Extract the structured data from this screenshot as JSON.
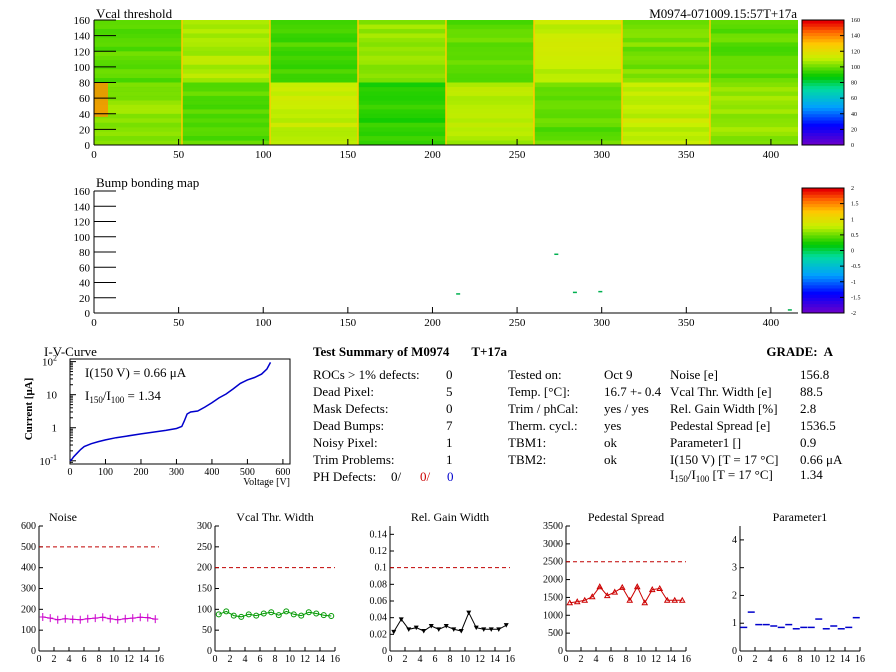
{
  "heatmap": {
    "title": "Vcal threshold",
    "module_label": "M0974-071009.15:57T+17a",
    "xlim": [
      0,
      416
    ],
    "ylim": [
      0,
      160
    ],
    "xticks": [
      0,
      50,
      100,
      150,
      200,
      250,
      300,
      350,
      400
    ],
    "yticks": [
      0,
      20,
      40,
      60,
      80,
      100,
      120,
      140,
      160
    ],
    "colorbar": {
      "min": 0,
      "max": 160,
      "ticks": [
        0,
        20,
        40,
        60,
        80,
        100,
        120,
        140,
        160
      ]
    }
  },
  "bump_map": {
    "title": "Bump bonding map",
    "xlim": [
      0,
      416
    ],
    "ylim": [
      0,
      160
    ],
    "xticks": [
      0,
      50,
      100,
      150,
      200,
      250,
      300,
      350,
      400
    ],
    "yticks": [
      0,
      20,
      40,
      60,
      80,
      100,
      120,
      140,
      160
    ],
    "colorbar": {
      "min": -2,
      "max": 2,
      "ticks": [
        -2,
        -1.5,
        -1,
        -0.5,
        0,
        0.5,
        1,
        1.5,
        2
      ]
    },
    "points": [
      [
        272,
        78
      ],
      [
        214,
        26
      ],
      [
        283,
        28
      ],
      [
        298,
        29
      ],
      [
        410,
        5
      ]
    ]
  },
  "iv_curve": {
    "title": "I-V-Curve",
    "ylabel": "Current [μA]",
    "xlabel": "Voltage [V]",
    "xticks": [
      0,
      100,
      200,
      300,
      400,
      500,
      600
    ],
    "xlim": [
      0,
      620
    ],
    "ylog_range": [
      0.08,
      120
    ],
    "yticks": [
      {
        "value": 0.1,
        "base": "10",
        "exp": "-1"
      },
      {
        "value": 1,
        "base": "1",
        "exp": ""
      },
      {
        "value": 10,
        "base": "10",
        "exp": ""
      },
      {
        "value": 100,
        "base": "10",
        "exp": "2"
      }
    ],
    "annotation_1": "I(150 V) = 0.66 μA",
    "annotation_2_prefix": "I",
    "annotation_2_sub1": "150",
    "annotation_2_sep": "/I",
    "annotation_2_sub2": "100",
    "annotation_2_suffix": " = 1.34",
    "color": "#0000cc",
    "points": [
      [
        0,
        0.1
      ],
      [
        5,
        0.11
      ],
      [
        10,
        0.13
      ],
      [
        20,
        0.17
      ],
      [
        30,
        0.22
      ],
      [
        40,
        0.27
      ],
      [
        60,
        0.33
      ],
      [
        80,
        0.38
      ],
      [
        100,
        0.43
      ],
      [
        130,
        0.5
      ],
      [
        160,
        0.56
      ],
      [
        200,
        0.65
      ],
      [
        240,
        0.75
      ],
      [
        270,
        0.83
      ],
      [
        300,
        0.95
      ],
      [
        315,
        1.1
      ],
      [
        322,
        1.6
      ],
      [
        330,
        2.6
      ],
      [
        340,
        3.0
      ],
      [
        360,
        3.2
      ],
      [
        380,
        4.2
      ],
      [
        400,
        5.7
      ],
      [
        420,
        8.0
      ],
      [
        440,
        10.5
      ],
      [
        460,
        15
      ],
      [
        480,
        22
      ],
      [
        500,
        28
      ],
      [
        520,
        33
      ],
      [
        540,
        42
      ],
      [
        555,
        60
      ],
      [
        565,
        95
      ]
    ]
  },
  "summary": {
    "heading": "Test Summary of M0974",
    "tag": "T+17a",
    "grade_label": "GRADE:",
    "grade_value": "A",
    "left_rows": [
      {
        "label": "ROCs > 1% defects:",
        "value": "0"
      },
      {
        "label": "Dead Pixel:",
        "value": "5"
      },
      {
        "label": "Mask Defects:",
        "value": "0"
      },
      {
        "label": "Dead Bumps:",
        "value": "7"
      },
      {
        "label": "Noisy Pixel:",
        "value": "1"
      },
      {
        "label": "Trim Problems:",
        "value": "1"
      }
    ],
    "ph_label": "PH Defects:",
    "ph_values": [
      "0/",
      "0/",
      "0"
    ],
    "ph_colors": [
      "#000000",
      "#cc0000",
      "#0000cc"
    ],
    "mid_rows": [
      {
        "label": "Tested on:",
        "value": "Oct 9"
      },
      {
        "label": "Temp. [°C]:",
        "value": "16.7 +- 0.4"
      },
      {
        "label": "Trim / phCal:",
        "value": "yes / yes"
      },
      {
        "label": "Therm. cycl.:",
        "value": "yes"
      },
      {
        "label": "TBM1:",
        "value": "ok"
      },
      {
        "label": "TBM2:",
        "value": "ok"
      }
    ],
    "right_rows": [
      {
        "label": "Noise [e]",
        "value": "156.8"
      },
      {
        "label": "Vcal Thr. Width [e]",
        "value": "88.5"
      },
      {
        "label": "Rel. Gain Width [%]",
        "value": "2.8"
      },
      {
        "label": "Pedestal Spread [e]",
        "value": "1536.5"
      },
      {
        "label": "Parameter1 []",
        "value": "0.9"
      },
      {
        "label": "I(150 V) [T = 17 °C]",
        "value": "0.66 μA"
      }
    ],
    "ratio_label_prefix": "I",
    "ratio_sub1": "150",
    "ratio_sep": "/I",
    "ratio_sub2": "100",
    "ratio_suffix": "  [T = 17 °C]",
    "ratio_value": "1.34"
  },
  "chart_data": [
    {
      "type": "line",
      "title": "Noise",
      "color": "#cc00cc",
      "marker": "plus",
      "x": [
        0,
        1,
        2,
        3,
        4,
        5,
        6,
        7,
        8,
        9,
        10,
        11,
        12,
        13,
        14,
        15
      ],
      "values": [
        163,
        158,
        150,
        155,
        152,
        150,
        155,
        158,
        162,
        155,
        150,
        155,
        158,
        162,
        160,
        153
      ],
      "ylim": [
        0,
        600
      ],
      "yticks": [
        0,
        100,
        200,
        300,
        400,
        500,
        600
      ],
      "xticks": [
        0,
        2,
        4,
        6,
        8,
        10,
        12,
        14,
        16
      ],
      "ref_line": 500
    },
    {
      "type": "line",
      "title": "Vcal Thr. Width",
      "color": "#009900",
      "marker": "circle",
      "x": [
        0,
        1,
        2,
        3,
        4,
        5,
        6,
        7,
        8,
        9,
        10,
        11,
        12,
        13,
        14,
        15
      ],
      "values": [
        88,
        95,
        85,
        82,
        88,
        85,
        90,
        93,
        86,
        95,
        88,
        85,
        93,
        90,
        86,
        84
      ],
      "ylim": [
        0,
        300
      ],
      "yticks": [
        0,
        50,
        100,
        150,
        200,
        250,
        300
      ],
      "xticks": [
        0,
        2,
        4,
        6,
        8,
        10,
        12,
        14,
        16
      ],
      "ref_line": 200
    },
    {
      "type": "line",
      "title": "Rel. Gain Width",
      "color": "#000000",
      "marker": "triangle-down",
      "x": [
        0,
        1,
        2,
        3,
        4,
        5,
        6,
        7,
        8,
        9,
        10,
        11,
        12,
        13,
        14,
        15
      ],
      "values": [
        0.023,
        0.038,
        0.026,
        0.028,
        0.024,
        0.03,
        0.026,
        0.03,
        0.026,
        0.024,
        0.046,
        0.028,
        0.026,
        0.026,
        0.026,
        0.031
      ],
      "ylim": [
        0,
        0.15
      ],
      "yticks": [
        0,
        0.02,
        0.04,
        0.06,
        0.08,
        0.1,
        0.12,
        0.14
      ],
      "xticks": [
        0,
        2,
        4,
        6,
        8,
        10,
        12,
        14,
        16
      ],
      "ref_line": 0.1
    },
    {
      "type": "line",
      "title": "Pedestal Spread",
      "color": "#cc0000",
      "marker": "triangle-up",
      "x": [
        0,
        1,
        2,
        3,
        4,
        5,
        6,
        7,
        8,
        9,
        10,
        11,
        12,
        13,
        14,
        15
      ],
      "values": [
        1350,
        1380,
        1420,
        1520,
        1800,
        1550,
        1650,
        1780,
        1420,
        1800,
        1350,
        1720,
        1750,
        1420,
        1420,
        1420
      ],
      "ylim": [
        0,
        3500
      ],
      "yticks": [
        0,
        500,
        1000,
        1500,
        2000,
        2500,
        3000,
        3500
      ],
      "xticks": [
        0,
        2,
        4,
        6,
        8,
        10,
        12,
        14,
        16
      ],
      "ref_line": 2500
    },
    {
      "type": "scatter",
      "title": "Parameter1",
      "color": "#0000cc",
      "marker": "hbar",
      "x": [
        0,
        1,
        2,
        3,
        4,
        5,
        6,
        7,
        8,
        9,
        10,
        11,
        12,
        13,
        14,
        15
      ],
      "values": [
        0.85,
        1.4,
        0.95,
        0.95,
        0.9,
        0.85,
        0.95,
        0.8,
        0.85,
        0.85,
        1.15,
        0.8,
        0.9,
        0.8,
        0.85,
        1.2
      ],
      "ylim": [
        0,
        4.5
      ],
      "yticks": [
        0,
        1,
        2,
        3,
        4
      ],
      "xticks": [
        0,
        2,
        4,
        6,
        8,
        10,
        12,
        14,
        16
      ]
    }
  ]
}
